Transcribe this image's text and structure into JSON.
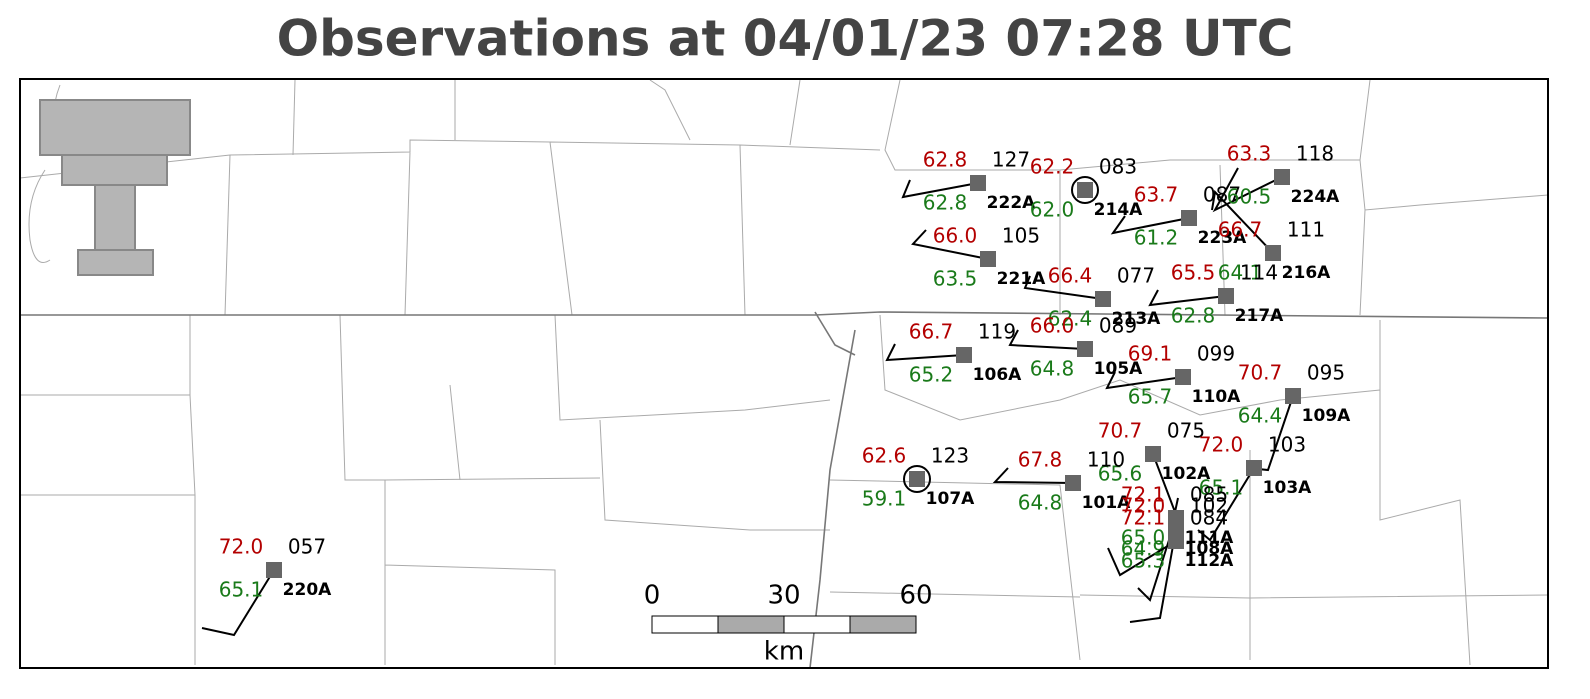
{
  "title": "Observations at 04/01/23 07:28 UTC",
  "stations": [
    {
      "id": "222A",
      "temperature": "62.8",
      "dewpoint": "62.8",
      "pressure": "127"
    },
    {
      "id": "214A",
      "temperature": "62.2",
      "dewpoint": "62.0",
      "pressure": "083"
    },
    {
      "id": "223A",
      "temperature": "63.7",
      "dewpoint": "61.2",
      "pressure": "087"
    },
    {
      "id": "224A",
      "temperature": "63.3",
      "dewpoint": "60.5",
      "pressure": "118"
    },
    {
      "id": "216A",
      "temperature": "66.7",
      "dewpoint": "64.1",
      "pressure": "111"
    },
    {
      "id": "221A",
      "temperature": "66.0",
      "dewpoint": "63.5",
      "pressure": "105"
    },
    {
      "id": "213A",
      "temperature": "66.4",
      "dewpoint": "62.4",
      "pressure": "077"
    },
    {
      "id": "217A",
      "temperature": "65.5",
      "dewpoint": "62.8",
      "pressure": "114"
    },
    {
      "id": "106A",
      "temperature": "66.7",
      "dewpoint": "65.2",
      "pressure": "119"
    },
    {
      "id": "105A",
      "temperature": "66.0",
      "dewpoint": "64.8",
      "pressure": "089"
    },
    {
      "id": "110A",
      "temperature": "69.1",
      "dewpoint": "65.7",
      "pressure": "099"
    },
    {
      "id": "109A",
      "temperature": "70.7",
      "dewpoint": "64.4",
      "pressure": "095"
    },
    {
      "id": "102A",
      "temperature": "70.7",
      "dewpoint": "65.6",
      "pressure": "075"
    },
    {
      "id": "103A",
      "temperature": "72.0",
      "dewpoint": "65.1",
      "pressure": "103"
    },
    {
      "id": "107A",
      "temperature": "62.6",
      "dewpoint": "59.1",
      "pressure": "123"
    },
    {
      "id": "101A",
      "temperature": "67.8",
      "dewpoint": "64.8",
      "pressure": "110"
    },
    {
      "id": "220A",
      "temperature": "72.0",
      "dewpoint": "65.1",
      "pressure": "057"
    },
    {
      "id": "111A",
      "temperature": "72.1",
      "dewpoint": "65.0",
      "pressure": "085"
    },
    {
      "id": "108A",
      "temperature": "72.0",
      "dewpoint": "64.9",
      "pressure": "102"
    },
    {
      "id": "112A",
      "temperature": "72.1",
      "dewpoint": "65.3",
      "pressure": "084"
    }
  ],
  "scale_bar": {
    "ticks": [
      "0",
      "30",
      "60"
    ],
    "unit": "km"
  }
}
